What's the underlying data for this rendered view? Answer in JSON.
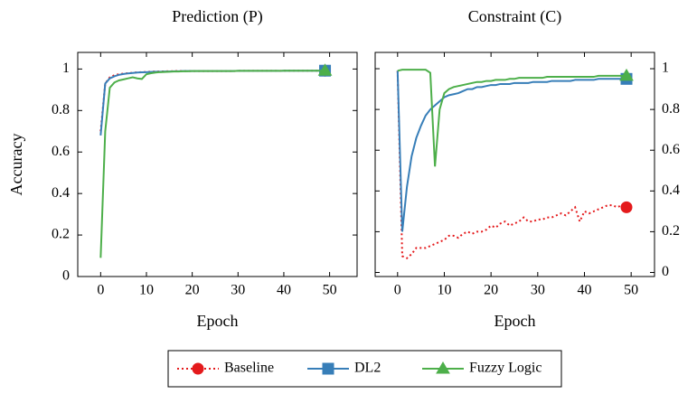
{
  "chart_data": [
    {
      "type": "line",
      "title": "Prediction (P)",
      "x_label": "Epoch",
      "y_label": "Accuracy",
      "yaxis_position": "left",
      "x": [
        0,
        1,
        2,
        3,
        4,
        5,
        6,
        7,
        8,
        9,
        10,
        11,
        12,
        13,
        14,
        15,
        16,
        17,
        18,
        19,
        20,
        21,
        22,
        23,
        24,
        25,
        26,
        27,
        28,
        29,
        30,
        31,
        32,
        33,
        34,
        35,
        36,
        37,
        38,
        39,
        40,
        41,
        42,
        43,
        44,
        45,
        46,
        47,
        48,
        49
      ],
      "xlim": [
        -5,
        56
      ],
      "xticks": [
        0,
        10,
        20,
        30,
        40,
        50
      ],
      "ylim": [
        0,
        1.08
      ],
      "yticks": [
        0,
        0.2,
        0.4,
        0.6,
        0.8,
        1
      ],
      "series": [
        {
          "name": "Baseline",
          "color": "#e41a1c",
          "line_style": "dotted",
          "marker": "circle",
          "values": [
            0.7,
            0.93,
            0.96,
            0.97,
            0.975,
            0.978,
            0.98,
            0.982,
            0.984,
            0.985,
            0.986,
            0.987,
            0.988,
            0.988,
            0.989,
            0.989,
            0.99,
            0.99,
            0.99,
            0.99,
            0.99,
            0.99,
            0.99,
            0.99,
            0.99,
            0.99,
            0.99,
            0.99,
            0.99,
            0.99,
            0.991,
            0.991,
            0.991,
            0.991,
            0.991,
            0.991,
            0.991,
            0.991,
            0.991,
            0.991,
            0.992,
            0.992,
            0.992,
            0.992,
            0.992,
            0.992,
            0.992,
            0.992,
            0.992,
            0.992
          ]
        },
        {
          "name": "DL2",
          "color": "#377eb8",
          "line_style": "solid",
          "marker": "square",
          "values": [
            0.68,
            0.93,
            0.955,
            0.965,
            0.972,
            0.976,
            0.979,
            0.981,
            0.983,
            0.984,
            0.985,
            0.986,
            0.987,
            0.987,
            0.988,
            0.988,
            0.989,
            0.989,
            0.99,
            0.99,
            0.99,
            0.99,
            0.99,
            0.99,
            0.99,
            0.99,
            0.99,
            0.99,
            0.99,
            0.99,
            0.991,
            0.991,
            0.991,
            0.991,
            0.991,
            0.991,
            0.991,
            0.991,
            0.991,
            0.991,
            0.992,
            0.992,
            0.992,
            0.992,
            0.992,
            0.992,
            0.992,
            0.992,
            0.992,
            0.992
          ]
        },
        {
          "name": "Fuzzy Logic",
          "color": "#4daf4a",
          "line_style": "solid",
          "marker": "triangle",
          "values": [
            0.09,
            0.7,
            0.91,
            0.935,
            0.945,
            0.95,
            0.955,
            0.96,
            0.955,
            0.952,
            0.975,
            0.98,
            0.983,
            0.985,
            0.986,
            0.987,
            0.988,
            0.988,
            0.989,
            0.989,
            0.99,
            0.99,
            0.99,
            0.99,
            0.99,
            0.99,
            0.99,
            0.99,
            0.99,
            0.99,
            0.991,
            0.991,
            0.991,
            0.991,
            0.991,
            0.991,
            0.991,
            0.991,
            0.991,
            0.991,
            0.992,
            0.992,
            0.992,
            0.992,
            0.992,
            0.992,
            0.992,
            0.992,
            0.992,
            0.992
          ]
        }
      ]
    },
    {
      "type": "line",
      "title": "Constraint (C)",
      "x_label": "Epoch",
      "yaxis_position": "right",
      "x": [
        0,
        1,
        2,
        3,
        4,
        5,
        6,
        7,
        8,
        9,
        10,
        11,
        12,
        13,
        14,
        15,
        16,
        17,
        18,
        19,
        20,
        21,
        22,
        23,
        24,
        25,
        26,
        27,
        28,
        29,
        30,
        31,
        32,
        33,
        34,
        35,
        36,
        37,
        38,
        39,
        40,
        41,
        42,
        43,
        44,
        45,
        46,
        47,
        48,
        49
      ],
      "xlim": [
        -4.8,
        55
      ],
      "xticks": [
        0,
        10,
        20,
        30,
        40,
        50
      ],
      "ylim": [
        -0.02,
        1.08
      ],
      "yticks": [
        0,
        0.2,
        0.4,
        0.6,
        0.8,
        1
      ],
      "series": [
        {
          "color": "#e41a1c",
          "line_style": "dotted",
          "marker": "circle",
          "values": [
            0.99,
            0.08,
            0.07,
            0.09,
            0.12,
            0.12,
            0.12,
            0.13,
            0.14,
            0.15,
            0.16,
            0.18,
            0.18,
            0.17,
            0.19,
            0.2,
            0.19,
            0.2,
            0.2,
            0.21,
            0.23,
            0.22,
            0.24,
            0.25,
            0.23,
            0.24,
            0.25,
            0.27,
            0.25,
            0.25,
            0.26,
            0.26,
            0.27,
            0.27,
            0.28,
            0.29,
            0.28,
            0.3,
            0.32,
            0.25,
            0.3,
            0.29,
            0.3,
            0.31,
            0.32,
            0.33,
            0.33,
            0.32,
            0.33,
            0.32
          ]
        },
        {
          "color": "#377eb8",
          "line_style": "solid",
          "marker": "square",
          "values": [
            0.99,
            0.2,
            0.42,
            0.57,
            0.66,
            0.72,
            0.77,
            0.8,
            0.82,
            0.84,
            0.86,
            0.87,
            0.875,
            0.88,
            0.89,
            0.9,
            0.9,
            0.91,
            0.91,
            0.915,
            0.92,
            0.92,
            0.925,
            0.925,
            0.925,
            0.93,
            0.93,
            0.93,
            0.93,
            0.935,
            0.935,
            0.935,
            0.935,
            0.94,
            0.94,
            0.94,
            0.94,
            0.94,
            0.945,
            0.945,
            0.945,
            0.945,
            0.945,
            0.95,
            0.95,
            0.95,
            0.95,
            0.95,
            0.95,
            0.95
          ]
        },
        {
          "color": "#4daf4a",
          "line_style": "solid",
          "marker": "triangle",
          "values": [
            0.99,
            0.995,
            0.995,
            0.995,
            0.995,
            0.995,
            0.995,
            0.98,
            0.52,
            0.8,
            0.88,
            0.9,
            0.91,
            0.915,
            0.92,
            0.925,
            0.93,
            0.935,
            0.935,
            0.94,
            0.94,
            0.945,
            0.945,
            0.945,
            0.95,
            0.95,
            0.955,
            0.955,
            0.955,
            0.955,
            0.955,
            0.955,
            0.96,
            0.96,
            0.96,
            0.96,
            0.96,
            0.96,
            0.96,
            0.96,
            0.96,
            0.96,
            0.96,
            0.965,
            0.965,
            0.965,
            0.965,
            0.965,
            0.965,
            0.965
          ]
        }
      ]
    }
  ]
}
